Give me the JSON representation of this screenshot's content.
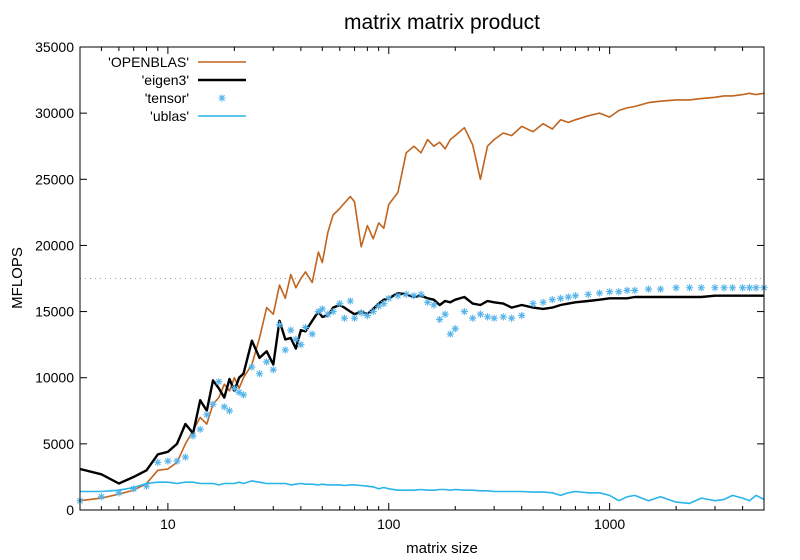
{
  "chart_data": {
    "type": "line",
    "title": "matrix matrix product",
    "xlabel": "matrix size",
    "ylabel": "MFLOPS",
    "x_scale": "log",
    "xlim": [
      4,
      5000
    ],
    "ylim": [
      0,
      35000
    ],
    "x_ticks": [
      10,
      100,
      1000
    ],
    "x_tick_labels": [
      "10",
      "100",
      "1000"
    ],
    "y_ticks": [
      0,
      5000,
      10000,
      15000,
      20000,
      25000,
      30000,
      35000
    ],
    "y_tick_labels": [
      "0",
      "5000",
      "10000",
      "15000",
      "20000",
      "25000",
      "30000",
      "35000"
    ],
    "grid": false,
    "reference_line": {
      "y": 17500,
      "style": "dotted",
      "color": "#a0a0a0"
    },
    "legend": {
      "position": "top-left"
    },
    "series": [
      {
        "name": "'OPENBLAS'",
        "style": "line",
        "color": "#c0641e",
        "x": [
          4,
          5,
          6,
          7,
          8,
          9,
          10,
          11,
          12,
          13,
          14,
          15,
          16,
          17,
          18,
          19,
          20,
          21,
          22,
          24,
          26,
          28,
          30,
          32,
          34,
          36,
          38,
          40,
          42,
          45,
          48,
          50,
          53,
          56,
          60,
          63,
          67,
          70,
          75,
          80,
          85,
          90,
          95,
          100,
          110,
          120,
          130,
          140,
          150,
          160,
          170,
          180,
          190,
          200,
          220,
          240,
          260,
          280,
          300,
          330,
          360,
          400,
          450,
          500,
          550,
          600,
          650,
          700,
          800,
          900,
          1000,
          1100,
          1200,
          1300,
          1500,
          1700,
          2000,
          2300,
          2600,
          3000,
          3300,
          3600,
          4000,
          4300,
          4600,
          5000
        ],
        "y": [
          700,
          900,
          1200,
          1500,
          2000,
          3000,
          3100,
          3600,
          5000,
          6000,
          7000,
          6500,
          8000,
          8500,
          9500,
          9000,
          10000,
          9200,
          10000,
          11000,
          13000,
          15300,
          14800,
          17000,
          16000,
          17800,
          16800,
          17500,
          18000,
          17200,
          19500,
          18700,
          21000,
          22300,
          22800,
          23200,
          23700,
          23300,
          19900,
          21500,
          20500,
          21700,
          21300,
          23100,
          24000,
          27000,
          27500,
          27000,
          28000,
          27500,
          27800,
          27300,
          28000,
          28300,
          28900,
          27600,
          25000,
          27500,
          28000,
          28500,
          28300,
          29000,
          28600,
          29200,
          28800,
          29500,
          29300,
          29500,
          29800,
          30000,
          29700,
          30200,
          30400,
          30500,
          30800,
          30900,
          31000,
          31000,
          31100,
          31200,
          31300,
          31300,
          31400,
          31500,
          31400,
          31500
        ]
      },
      {
        "name": "'eigen3'",
        "style": "line",
        "color": "#000000",
        "x": [
          4,
          5,
          6,
          7,
          8,
          9,
          10,
          11,
          12,
          13,
          14,
          15,
          16,
          17,
          18,
          19,
          20,
          21,
          22,
          24,
          26,
          28,
          30,
          32,
          34,
          36,
          38,
          40,
          42,
          45,
          48,
          50,
          53,
          56,
          60,
          63,
          67,
          70,
          75,
          80,
          85,
          90,
          95,
          100,
          110,
          120,
          130,
          140,
          150,
          160,
          170,
          180,
          190,
          200,
          220,
          240,
          260,
          280,
          300,
          330,
          360,
          400,
          450,
          500,
          550,
          600,
          650,
          700,
          800,
          900,
          1000,
          1100,
          1200,
          1300,
          1500,
          1700,
          2000,
          2300,
          2600,
          3000,
          3300,
          3600,
          4000,
          4300,
          4600,
          5000
        ],
        "y": [
          3100,
          2700,
          2000,
          2500,
          3000,
          4200,
          4400,
          5000,
          6500,
          5800,
          8300,
          7500,
          9800,
          9200,
          8500,
          9900,
          9000,
          10000,
          10300,
          12800,
          11500,
          12000,
          11000,
          14300,
          12900,
          13000,
          12200,
          13600,
          13500,
          14300,
          15000,
          14600,
          14700,
          15300,
          15500,
          15300,
          15000,
          14800,
          15000,
          14800,
          15200,
          15600,
          15900,
          16000,
          16400,
          16300,
          16100,
          16200,
          16000,
          15900,
          15500,
          15800,
          15700,
          15900,
          16100,
          15600,
          15500,
          15800,
          15700,
          15600,
          15300,
          15500,
          15300,
          15200,
          15300,
          15500,
          15600,
          15700,
          15800,
          15900,
          16000,
          16000,
          16000,
          16100,
          16100,
          16100,
          16100,
          16100,
          16100,
          16200,
          16200,
          16200,
          16200,
          16200,
          16200,
          16200
        ]
      },
      {
        "name": "'tensor'",
        "style": "points",
        "color": "#56b4e9",
        "x": [
          4,
          5,
          6,
          7,
          8,
          9,
          10,
          11,
          12,
          13,
          14,
          15,
          16,
          17,
          18,
          19,
          20,
          21,
          22,
          24,
          26,
          28,
          30,
          32,
          34,
          36,
          38,
          40,
          42,
          45,
          48,
          50,
          53,
          56,
          60,
          63,
          67,
          70,
          75,
          80,
          85,
          90,
          95,
          100,
          110,
          120,
          130,
          140,
          150,
          160,
          170,
          180,
          190,
          200,
          220,
          240,
          260,
          280,
          300,
          330,
          360,
          400,
          450,
          500,
          550,
          600,
          650,
          700,
          800,
          900,
          1000,
          1100,
          1200,
          1300,
          1500,
          1700,
          2000,
          2300,
          2600,
          3000,
          3300,
          3600,
          4000,
          4300,
          4600,
          5000
        ],
        "y": [
          700,
          1000,
          1300,
          1600,
          1800,
          3600,
          3700,
          3700,
          4000,
          5600,
          6100,
          7200,
          8000,
          9700,
          7800,
          7500,
          9200,
          8900,
          8700,
          10800,
          10300,
          11200,
          10600,
          14000,
          12100,
          13600,
          12900,
          12500,
          13800,
          13300,
          15000,
          15200,
          14800,
          15000,
          15600,
          14500,
          15800,
          14500,
          14900,
          14700,
          15000,
          15400,
          15600,
          16000,
          16200,
          16300,
          16200,
          16300,
          15700,
          15500,
          14400,
          14800,
          13300,
          13700,
          15000,
          14500,
          14800,
          14600,
          14500,
          14600,
          14500,
          14700,
          15600,
          15700,
          15900,
          16000,
          16100,
          16200,
          16300,
          16400,
          16500,
          16500,
          16600,
          16600,
          16700,
          16700,
          16800,
          16800,
          16800,
          16800,
          16800,
          16800,
          16800,
          16800,
          16800,
          16800
        ]
      },
      {
        "name": "'ublas'",
        "style": "line",
        "color": "#2ab4e8",
        "x": [
          4,
          5,
          6,
          7,
          8,
          9,
          10,
          11,
          12,
          13,
          14,
          15,
          16,
          17,
          18,
          19,
          20,
          21,
          22,
          24,
          26,
          28,
          30,
          32,
          34,
          36,
          38,
          40,
          42,
          45,
          48,
          50,
          53,
          56,
          60,
          63,
          67,
          70,
          75,
          80,
          85,
          90,
          95,
          100,
          110,
          120,
          130,
          140,
          150,
          160,
          170,
          180,
          190,
          200,
          220,
          240,
          260,
          280,
          300,
          330,
          360,
          400,
          450,
          500,
          550,
          600,
          650,
          700,
          800,
          900,
          1000,
          1100,
          1200,
          1300,
          1500,
          1700,
          2000,
          2300,
          2600,
          3000,
          3300,
          3600,
          4000,
          4300,
          4600,
          5000
        ],
        "y": [
          1400,
          1400,
          1500,
          1700,
          2000,
          2100,
          2100,
          2000,
          2100,
          2100,
          2000,
          2000,
          2000,
          1900,
          2000,
          2000,
          2000,
          2100,
          2000,
          2200,
          2100,
          2000,
          2000,
          2000,
          2000,
          1900,
          1950,
          2000,
          1950,
          1950,
          1900,
          1950,
          1900,
          1900,
          1900,
          1850,
          1900,
          1900,
          1850,
          1800,
          1750,
          1600,
          1700,
          1600,
          1500,
          1500,
          1500,
          1550,
          1500,
          1500,
          1550,
          1550,
          1500,
          1550,
          1500,
          1500,
          1450,
          1450,
          1400,
          1400,
          1400,
          1400,
          1350,
          1350,
          1300,
          1100,
          1300,
          1400,
          1300,
          1300,
          1100,
          700,
          1000,
          1100,
          700,
          1000,
          600,
          500,
          900,
          700,
          800,
          1100,
          900,
          700,
          1100,
          800
        ]
      }
    ]
  }
}
